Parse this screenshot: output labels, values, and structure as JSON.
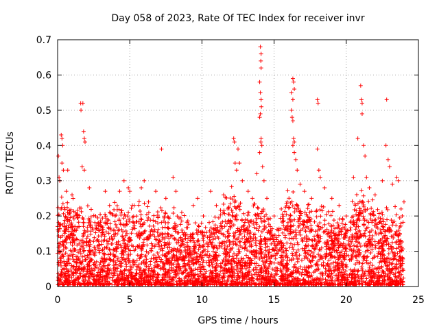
{
  "chart_data": {
    "type": "scatter",
    "title": "Day 058 of 2023, Rate Of TEC Index for receiver invr",
    "xlabel": "GPS time / hours",
    "ylabel": "ROTI / TECUs",
    "xlim": [
      0,
      25
    ],
    "ylim": [
      0,
      0.7
    ],
    "x_ticks": [
      0,
      5,
      10,
      15,
      20,
      25
    ],
    "x_tick_labels": [
      "0",
      "5",
      "10",
      "15",
      "20",
      "25"
    ],
    "y_ticks": [
      0,
      0.1,
      0.2,
      0.3,
      0.4,
      0.5,
      0.6,
      0.7
    ],
    "y_tick_labels": [
      "0",
      "0.1",
      "0.2",
      "0.3",
      "0.4",
      "0.5",
      "0.6",
      "0.7"
    ],
    "grid": true,
    "marker": "+",
    "color": "#ff0000",
    "series": [
      {
        "name": "ROTI",
        "points": [
          [
            0.05,
            0.37
          ],
          [
            0.1,
            0.31
          ],
          [
            0.15,
            0.3
          ],
          [
            0.25,
            0.43
          ],
          [
            0.3,
            0.42
          ],
          [
            0.35,
            0.4
          ],
          [
            0.3,
            0.35
          ],
          [
            0.4,
            0.33
          ],
          [
            0.6,
            0.27
          ],
          [
            0.7,
            0.33
          ],
          [
            1.0,
            0.26
          ],
          [
            1.6,
            0.52
          ],
          [
            1.62,
            0.5
          ],
          [
            1.75,
            0.52
          ],
          [
            1.8,
            0.44
          ],
          [
            1.85,
            0.42
          ],
          [
            1.9,
            0.41
          ],
          [
            1.7,
            0.34
          ],
          [
            1.85,
            0.33
          ],
          [
            2.2,
            0.28
          ],
          [
            3.3,
            0.27
          ],
          [
            3.6,
            0.23
          ],
          [
            4.3,
            0.27
          ],
          [
            4.6,
            0.3
          ],
          [
            4.9,
            0.28
          ],
          [
            5.0,
            0.27
          ],
          [
            5.3,
            0.23
          ],
          [
            5.8,
            0.28
          ],
          [
            6.0,
            0.3
          ],
          [
            6.3,
            0.24
          ],
          [
            6.8,
            0.27
          ],
          [
            7.2,
            0.39
          ],
          [
            7.5,
            0.25
          ],
          [
            8.0,
            0.31
          ],
          [
            8.2,
            0.27
          ],
          [
            8.6,
            0.21
          ],
          [
            9.4,
            0.23
          ],
          [
            9.7,
            0.25
          ],
          [
            10.1,
            0.2
          ],
          [
            10.6,
            0.27
          ],
          [
            11.0,
            0.23
          ],
          [
            11.5,
            0.26
          ],
          [
            11.8,
            0.22
          ],
          [
            12.2,
            0.42
          ],
          [
            12.25,
            0.41
          ],
          [
            12.3,
            0.35
          ],
          [
            12.4,
            0.33
          ],
          [
            12.5,
            0.39
          ],
          [
            12.6,
            0.35
          ],
          [
            12.8,
            0.3
          ],
          [
            13.2,
            0.27
          ],
          [
            13.5,
            0.25
          ],
          [
            13.8,
            0.32
          ],
          [
            14.0,
            0.38
          ],
          [
            14.05,
            0.68
          ],
          [
            14.1,
            0.66
          ],
          [
            14.08,
            0.64
          ],
          [
            14.1,
            0.62
          ],
          [
            14.0,
            0.58
          ],
          [
            14.05,
            0.55
          ],
          [
            14.1,
            0.53
          ],
          [
            14.12,
            0.51
          ],
          [
            14.05,
            0.49
          ],
          [
            14.0,
            0.48
          ],
          [
            14.1,
            0.42
          ],
          [
            14.08,
            0.41
          ],
          [
            14.15,
            0.4
          ],
          [
            14.2,
            0.34
          ],
          [
            14.3,
            0.3
          ],
          [
            14.5,
            0.25
          ],
          [
            15.0,
            0.2
          ],
          [
            15.5,
            0.22
          ],
          [
            15.9,
            0.24
          ],
          [
            16.2,
            0.55
          ],
          [
            16.3,
            0.59
          ],
          [
            16.35,
            0.58
          ],
          [
            16.4,
            0.56
          ],
          [
            16.3,
            0.53
          ],
          [
            16.2,
            0.5
          ],
          [
            16.25,
            0.48
          ],
          [
            16.3,
            0.47
          ],
          [
            16.35,
            0.42
          ],
          [
            16.4,
            0.41
          ],
          [
            16.3,
            0.4
          ],
          [
            16.4,
            0.38
          ],
          [
            16.5,
            0.36
          ],
          [
            16.6,
            0.33
          ],
          [
            16.8,
            0.29
          ],
          [
            17.1,
            0.27
          ],
          [
            17.6,
            0.25
          ],
          [
            18.0,
            0.53
          ],
          [
            18.05,
            0.52
          ],
          [
            18.0,
            0.39
          ],
          [
            18.1,
            0.33
          ],
          [
            18.2,
            0.31
          ],
          [
            18.5,
            0.28
          ],
          [
            19.0,
            0.25
          ],
          [
            19.5,
            0.23
          ],
          [
            20.0,
            0.2
          ],
          [
            20.5,
            0.31
          ],
          [
            20.8,
            0.42
          ],
          [
            21.0,
            0.57
          ],
          [
            21.05,
            0.53
          ],
          [
            21.1,
            0.52
          ],
          [
            21.1,
            0.49
          ],
          [
            21.2,
            0.4
          ],
          [
            21.3,
            0.37
          ],
          [
            21.4,
            0.31
          ],
          [
            21.6,
            0.28
          ],
          [
            22.0,
            0.26
          ],
          [
            22.5,
            0.3
          ],
          [
            22.8,
            0.53
          ],
          [
            22.75,
            0.4
          ],
          [
            22.9,
            0.36
          ],
          [
            23.0,
            0.34
          ],
          [
            23.2,
            0.29
          ],
          [
            23.5,
            0.31
          ],
          [
            23.6,
            0.3
          ],
          [
            23.8,
            0.22
          ],
          [
            24.0,
            0.24
          ]
        ],
        "dense_band": {
          "description": "thousands of points filling 0.0-0.2 across the day with local enhancements",
          "hourly_upper": [
            0.24,
            0.22,
            0.21,
            0.2,
            0.22,
            0.21,
            0.22,
            0.2,
            0.2,
            0.18,
            0.17,
            0.19,
            0.26,
            0.19,
            0.23,
            0.17,
            0.26,
            0.22,
            0.22,
            0.2,
            0.17,
            0.27,
            0.22,
            0.21,
            0.2
          ],
          "lower": 0.0
        }
      }
    ]
  }
}
